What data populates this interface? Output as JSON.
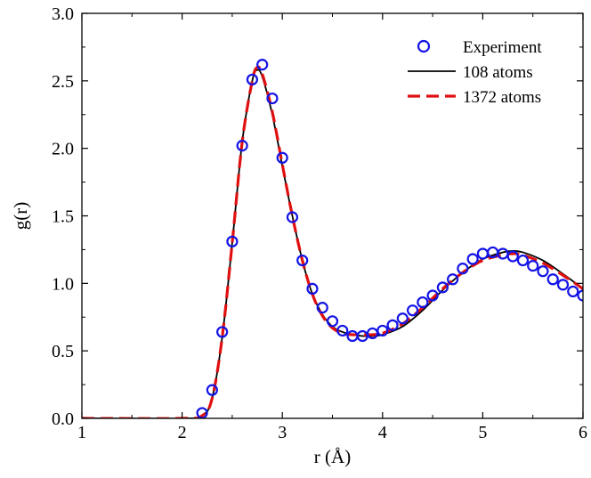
{
  "chart_data": {
    "type": "line",
    "xlabel": "r (Å)",
    "ylabel": "g(r)",
    "xlim": [
      1,
      6
    ],
    "ylim": [
      0,
      3.0
    ],
    "x_ticks": [
      "1",
      "2",
      "3",
      "4",
      "5",
      "6"
    ],
    "y_ticks": [
      "0.0",
      "0.5",
      "1.0",
      "1.5",
      "2.0",
      "2.5",
      "3.0"
    ],
    "grid": false,
    "legend_position": "top-right",
    "series": [
      {
        "name": "Experiment",
        "kind": "scatter",
        "marker": "open-circle",
        "color": "#1414e6",
        "x": [
          2.2,
          2.3,
          2.4,
          2.5,
          2.6,
          2.7,
          2.8,
          2.9,
          3.0,
          3.1,
          3.2,
          3.3,
          3.4,
          3.5,
          3.6,
          3.7,
          3.8,
          3.9,
          4.0,
          4.1,
          4.2,
          4.3,
          4.4,
          4.5,
          4.6,
          4.7,
          4.8,
          4.9,
          5.0,
          5.1,
          5.2,
          5.3,
          5.4,
          5.5,
          5.6,
          5.7,
          5.8,
          5.9,
          6.0
        ],
        "y": [
          0.04,
          0.21,
          0.64,
          1.31,
          2.02,
          2.51,
          2.62,
          2.37,
          1.93,
          1.49,
          1.17,
          0.96,
          0.82,
          0.72,
          0.65,
          0.61,
          0.61,
          0.63,
          0.65,
          0.69,
          0.74,
          0.8,
          0.86,
          0.91,
          0.97,
          1.03,
          1.11,
          1.18,
          1.22,
          1.23,
          1.22,
          1.2,
          1.17,
          1.13,
          1.09,
          1.03,
          0.99,
          0.94,
          0.91
        ]
      },
      {
        "name": "108 atoms",
        "kind": "line",
        "dash": "solid",
        "color": "#000000",
        "x": [
          1.0,
          2.0,
          2.2,
          2.3,
          2.4,
          2.5,
          2.6,
          2.7,
          2.75,
          2.8,
          2.9,
          3.0,
          3.1,
          3.2,
          3.3,
          3.4,
          3.5,
          3.6,
          3.7,
          3.8,
          3.9,
          4.0,
          4.2,
          4.4,
          4.6,
          4.8,
          5.0,
          5.2,
          5.3,
          5.4,
          5.6,
          5.8,
          6.0
        ],
        "y": [
          0.0,
          0.0,
          0.02,
          0.15,
          0.6,
          1.3,
          2.05,
          2.5,
          2.58,
          2.53,
          2.25,
          1.87,
          1.5,
          1.17,
          0.92,
          0.77,
          0.68,
          0.64,
          0.62,
          0.61,
          0.61,
          0.62,
          0.68,
          0.8,
          0.95,
          1.08,
          1.18,
          1.23,
          1.24,
          1.23,
          1.17,
          1.07,
          0.96
        ]
      },
      {
        "name": "1372 atoms",
        "kind": "line",
        "dash": "dashed",
        "color": "#e01010",
        "x": [
          1.0,
          2.0,
          2.2,
          2.3,
          2.4,
          2.5,
          2.6,
          2.7,
          2.75,
          2.8,
          2.9,
          3.0,
          3.1,
          3.2,
          3.3,
          3.4,
          3.5,
          3.6,
          3.7,
          3.8,
          3.9,
          4.0,
          4.2,
          4.4,
          4.6,
          4.8,
          5.0,
          5.2,
          5.3,
          5.4,
          5.6,
          5.8,
          6.0
        ],
        "y": [
          0.0,
          0.0,
          0.02,
          0.15,
          0.6,
          1.3,
          2.05,
          2.5,
          2.6,
          2.55,
          2.27,
          1.88,
          1.5,
          1.17,
          0.92,
          0.76,
          0.67,
          0.63,
          0.62,
          0.62,
          0.62,
          0.63,
          0.7,
          0.82,
          0.96,
          1.08,
          1.17,
          1.21,
          1.22,
          1.21,
          1.15,
          1.06,
          0.96
        ]
      }
    ]
  }
}
